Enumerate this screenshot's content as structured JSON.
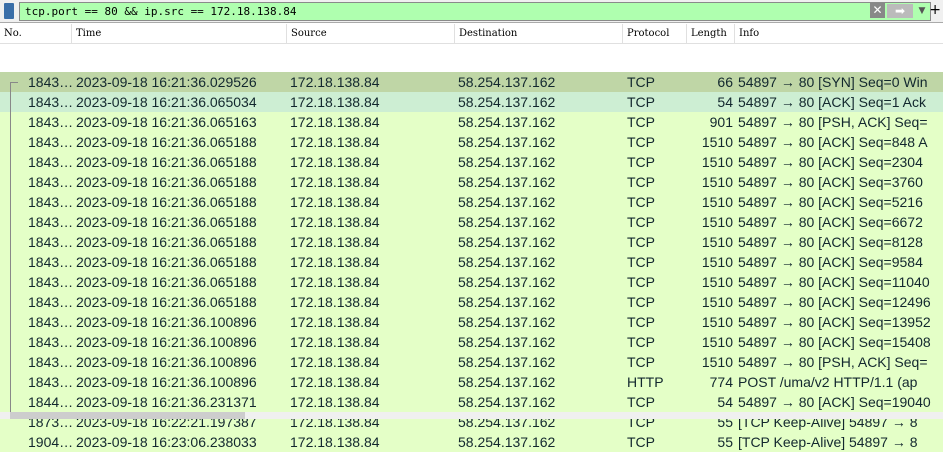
{
  "filter": {
    "value": "tcp.port == 80 && ip.src == 172.18.138.84",
    "clear_icon": "close-icon",
    "apply_icon": "arrow-right-icon"
  },
  "columns": [
    "No.",
    "Time",
    "Source",
    "Destination",
    "Protocol",
    "Length",
    "Info"
  ],
  "colors": {
    "filter_bg": "#afffaf",
    "row_selected": "#bfd6a6",
    "row_related": "#cdeed3",
    "row_tcp": "#e4ffc7"
  },
  "rows": [
    [
      "1843…",
      "2023-09-18 16:21:36.029526",
      "172.18.138.84",
      "58.254.137.162",
      "TCP",
      "66",
      "54897 → 80 [SYN] Seq=0 Win"
    ],
    [
      "1843…",
      "2023-09-18 16:21:36.065034",
      "172.18.138.84",
      "58.254.137.162",
      "TCP",
      "54",
      "54897 → 80 [ACK] Seq=1 Ack"
    ],
    [
      "1843…",
      "2023-09-18 16:21:36.065163",
      "172.18.138.84",
      "58.254.137.162",
      "TCP",
      "901",
      "54897 → 80 [PSH, ACK] Seq="
    ],
    [
      "1843…",
      "2023-09-18 16:21:36.065188",
      "172.18.138.84",
      "58.254.137.162",
      "TCP",
      "1510",
      "54897 → 80 [ACK] Seq=848 A"
    ],
    [
      "1843…",
      "2023-09-18 16:21:36.065188",
      "172.18.138.84",
      "58.254.137.162",
      "TCP",
      "1510",
      "54897 → 80 [ACK] Seq=2304"
    ],
    [
      "1843…",
      "2023-09-18 16:21:36.065188",
      "172.18.138.84",
      "58.254.137.162",
      "TCP",
      "1510",
      "54897 → 80 [ACK] Seq=3760"
    ],
    [
      "1843…",
      "2023-09-18 16:21:36.065188",
      "172.18.138.84",
      "58.254.137.162",
      "TCP",
      "1510",
      "54897 → 80 [ACK] Seq=5216"
    ],
    [
      "1843…",
      "2023-09-18 16:21:36.065188",
      "172.18.138.84",
      "58.254.137.162",
      "TCP",
      "1510",
      "54897 → 80 [ACK] Seq=6672"
    ],
    [
      "1843…",
      "2023-09-18 16:21:36.065188",
      "172.18.138.84",
      "58.254.137.162",
      "TCP",
      "1510",
      "54897 → 80 [ACK] Seq=8128"
    ],
    [
      "1843…",
      "2023-09-18 16:21:36.065188",
      "172.18.138.84",
      "58.254.137.162",
      "TCP",
      "1510",
      "54897 → 80 [ACK] Seq=9584"
    ],
    [
      "1843…",
      "2023-09-18 16:21:36.065188",
      "172.18.138.84",
      "58.254.137.162",
      "TCP",
      "1510",
      "54897 → 80 [ACK] Seq=11040"
    ],
    [
      "1843…",
      "2023-09-18 16:21:36.065188",
      "172.18.138.84",
      "58.254.137.162",
      "TCP",
      "1510",
      "54897 → 80 [ACK] Seq=12496"
    ],
    [
      "1843…",
      "2023-09-18 16:21:36.100896",
      "172.18.138.84",
      "58.254.137.162",
      "TCP",
      "1510",
      "54897 → 80 [ACK] Seq=13952"
    ],
    [
      "1843…",
      "2023-09-18 16:21:36.100896",
      "172.18.138.84",
      "58.254.137.162",
      "TCP",
      "1510",
      "54897 → 80 [ACK] Seq=15408"
    ],
    [
      "1843…",
      "2023-09-18 16:21:36.100896",
      "172.18.138.84",
      "58.254.137.162",
      "TCP",
      "1510",
      "54897 → 80 [PSH, ACK] Seq="
    ],
    [
      "1843…",
      "2023-09-18 16:21:36.100896",
      "172.18.138.84",
      "58.254.137.162",
      "HTTP",
      "774",
      "POST /uma/v2 HTTP/1.1  (ap"
    ],
    [
      "1844…",
      "2023-09-18 16:21:36.231371",
      "172.18.138.84",
      "58.254.137.162",
      "TCP",
      "54",
      "54897 → 80 [ACK] Seq=19040"
    ],
    [
      "1873…",
      "2023-09-18 16:22:21.197387",
      "172.18.138.84",
      "58.254.137.162",
      "TCP",
      "55",
      "[TCP Keep-Alive] 54897 → 8"
    ],
    [
      "1904…",
      "2023-09-18 16:23:06.238033",
      "172.18.138.84",
      "58.254.137.162",
      "TCP",
      "55",
      "[TCP Keep-Alive] 54897 → 8"
    ]
  ]
}
